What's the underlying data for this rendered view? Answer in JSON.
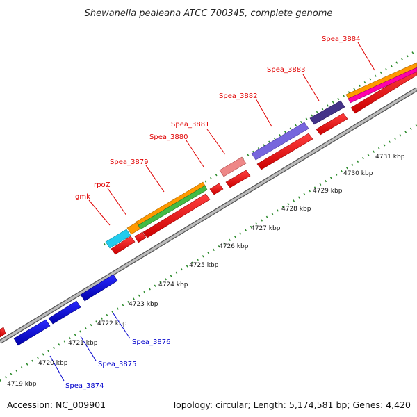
{
  "title": "Shewanella pealeana ATCC 700345, complete genome",
  "footer": {
    "accession": "Accession: NC_009901",
    "summary": "Topology: circular; Length: 5,174,581 bp; Genes: 4,420"
  },
  "ruler": {
    "ticks": [
      "4719 kbp",
      "4720 kbp",
      "4721 kbp",
      "4722 kbp",
      "4723 kbp",
      "4724 kbp",
      "4725 kbp",
      "4726 kbp",
      "4727 kbp",
      "4728 kbp",
      "4729 kbp",
      "4730 kbp",
      "4731 kbp"
    ]
  },
  "gene_labels": [
    {
      "text": "gmk",
      "strand": "forward",
      "color": "#e00000"
    },
    {
      "text": "rpoZ",
      "strand": "forward",
      "color": "#e00000"
    },
    {
      "text": "Spea_3879",
      "strand": "forward",
      "color": "#e00000"
    },
    {
      "text": "Spea_3880",
      "strand": "forward",
      "color": "#e00000"
    },
    {
      "text": "Spea_3881",
      "strand": "forward",
      "color": "#e00000"
    },
    {
      "text": "Spea_3882",
      "strand": "forward",
      "color": "#e00000"
    },
    {
      "text": "Spea_3883",
      "strand": "forward",
      "color": "#e00000"
    },
    {
      "text": "Spea_3884",
      "strand": "forward",
      "color": "#e00000"
    },
    {
      "text": "Spea_3874",
      "strand": "reverse",
      "color": "#0000cc"
    },
    {
      "text": "Spea_3875",
      "strand": "reverse",
      "color": "#0000cc"
    },
    {
      "text": "Spea_3876",
      "strand": "reverse",
      "color": "#0000cc"
    }
  ],
  "colors": {
    "cds_forward": "#ff0000",
    "cds_reverse": "#0000ee",
    "backbone": "#8c8c8c",
    "tick": "#2a8a2a",
    "cyan": "#22ccee",
    "orange": "#ff9900",
    "green": "#44bb44",
    "pink": "#ee8888",
    "purple": "#7766dd",
    "dark_purple": "#443388",
    "magenta": "#ff00aa"
  }
}
